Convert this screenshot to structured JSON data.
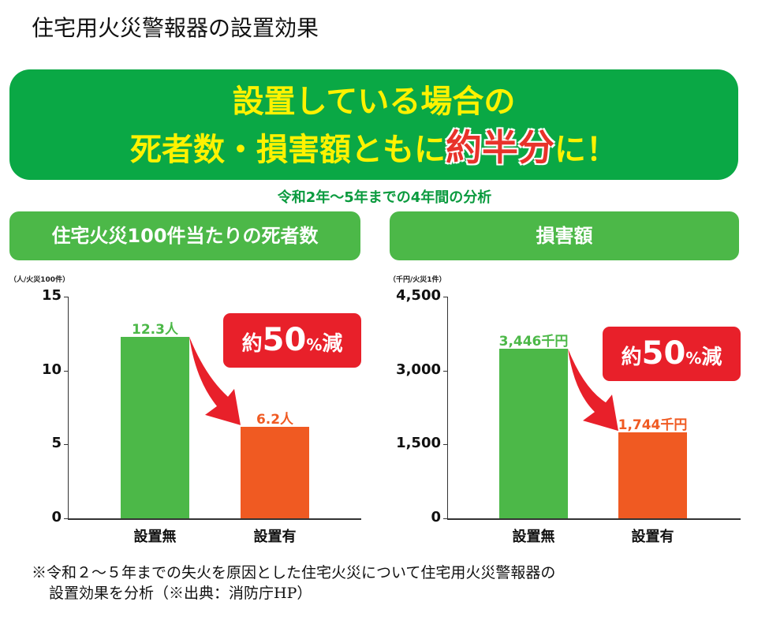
{
  "title": "住宅用火災警報器の設置効果",
  "banner": {
    "line1": "設置している場合の",
    "line2_a": "死者数・損害額ともに",
    "line2_hl": "約半分",
    "line2_b": "に！"
  },
  "period": "令和2年〜5年までの4年間の分析",
  "colors": {
    "banner": "#0aa845",
    "header": "#4cb848",
    "without": "#4cb848",
    "with": "#f05a22",
    "badge": "#e8202a",
    "headline": "#fff200"
  },
  "chart_data": [
    {
      "type": "bar",
      "title": "住宅火災100件当たりの死者数",
      "ylabel": "（人/火災100件）",
      "ylim": [
        0,
        15
      ],
      "yticks": [
        0,
        5,
        10,
        15
      ],
      "ytick_labels": [
        "0",
        "5",
        "10",
        "15"
      ],
      "categories": [
        "設置無",
        "設置有"
      ],
      "values": [
        12.3,
        6.2
      ],
      "data_labels": [
        "12.3人",
        "6.2人"
      ],
      "annotation": {
        "pre": "約",
        "num": "50",
        "pct": "%",
        "post": "減"
      }
    },
    {
      "type": "bar",
      "title": "損害額",
      "ylabel": "（千円/火災1件）",
      "ylim": [
        0,
        4500
      ],
      "yticks": [
        0,
        1500,
        3000,
        4500
      ],
      "ytick_labels": [
        "0",
        "1,500",
        "3,000",
        "4,500"
      ],
      "categories": [
        "設置無",
        "設置有"
      ],
      "values": [
        3446,
        1744
      ],
      "data_labels": [
        "3,446千円",
        "1,744千円"
      ],
      "annotation": {
        "pre": "約",
        "num": "50",
        "pct": "%",
        "post": "減"
      }
    }
  ],
  "note": {
    "line1": "※令和２〜５年までの失火を原因とした住宅火災について住宅用火災警報器の",
    "line2": "設置効果を分析（※出典：消防庁HP）"
  }
}
